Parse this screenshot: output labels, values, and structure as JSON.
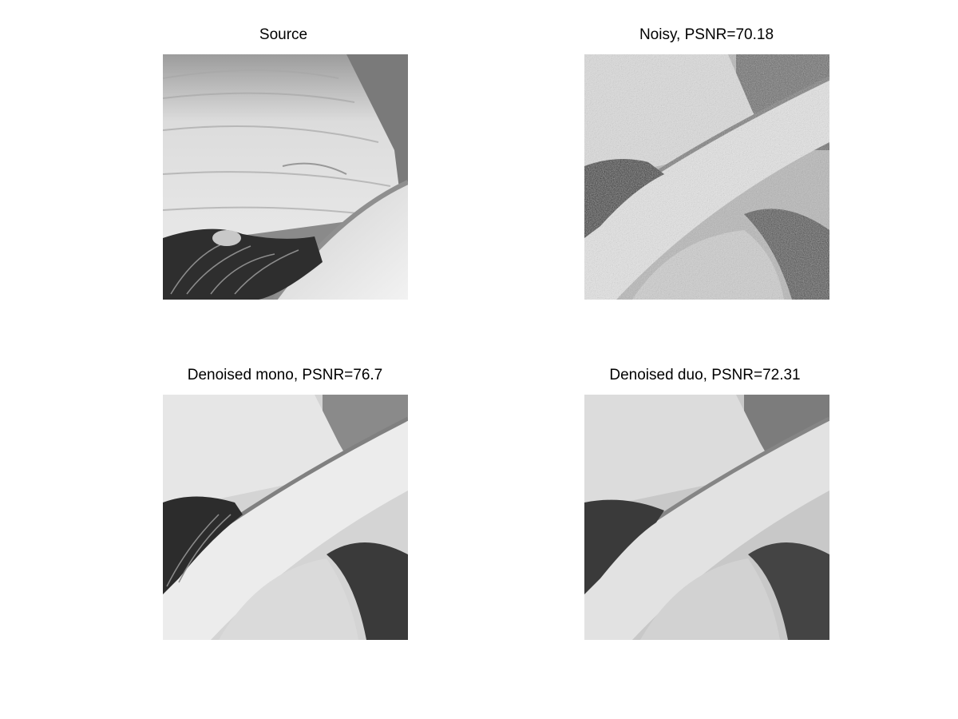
{
  "panels": [
    {
      "title": "Source"
    },
    {
      "title": "Noisy, PSNR=70.18"
    },
    {
      "title": "Denoised mono, PSNR=76.7"
    },
    {
      "title": "Denoised duo, PSNR=72.31"
    }
  ]
}
